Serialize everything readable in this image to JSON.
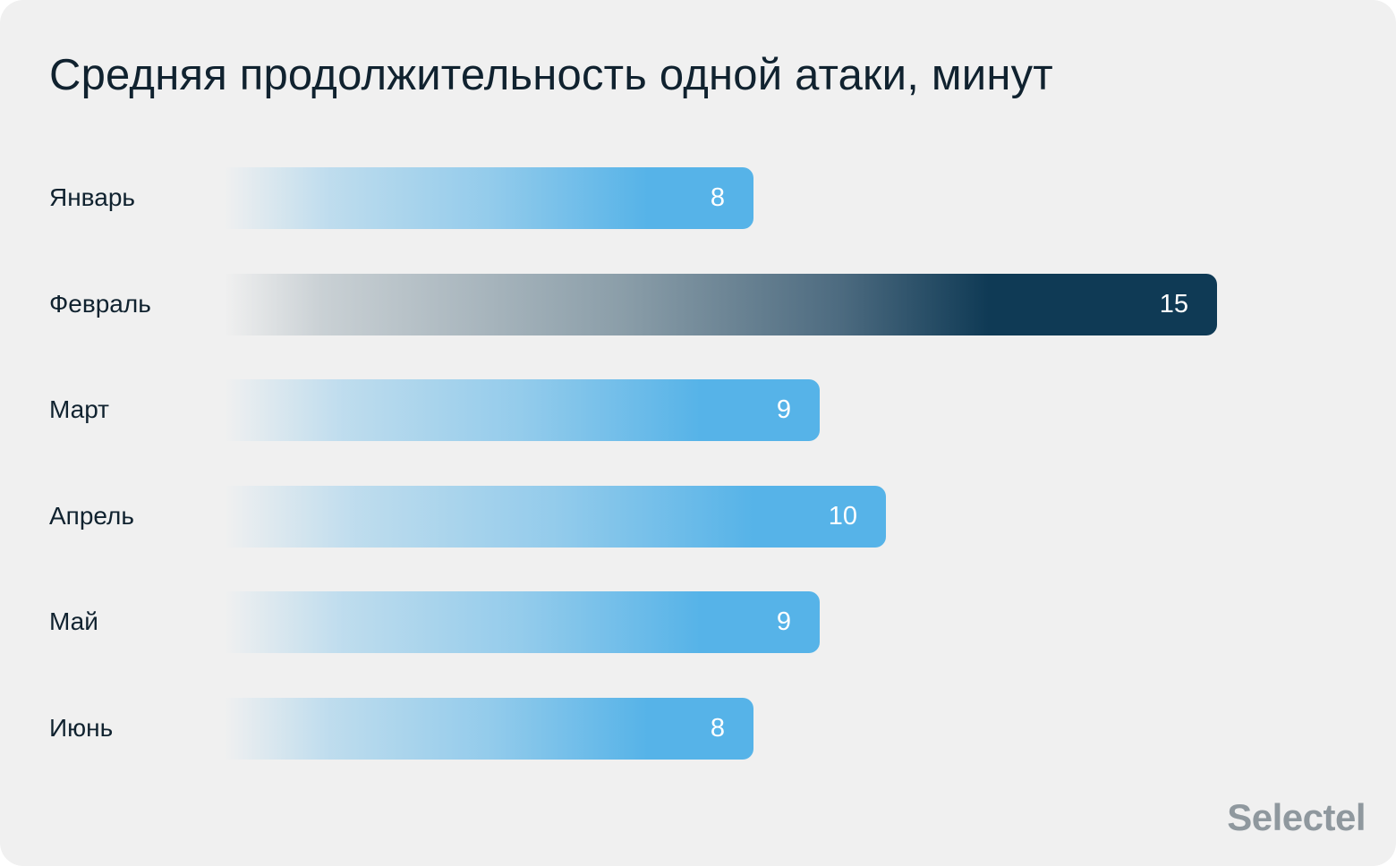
{
  "chart_data": {
    "type": "bar",
    "orientation": "horizontal",
    "title": "Средняя продолжительность одной атаки, минут",
    "categories": [
      "Январь",
      "Февраль",
      "Март",
      "Апрель",
      "Май",
      "Июнь"
    ],
    "values": [
      8,
      15,
      9,
      10,
      9,
      8
    ],
    "highlight_index": 1,
    "xlabel": "",
    "ylabel": "",
    "xlim": [
      0,
      15
    ],
    "grid": false,
    "colors": {
      "default": "#56b3e8",
      "highlight": "#0f3a55"
    }
  },
  "branding": {
    "logo": "Selectel"
  }
}
